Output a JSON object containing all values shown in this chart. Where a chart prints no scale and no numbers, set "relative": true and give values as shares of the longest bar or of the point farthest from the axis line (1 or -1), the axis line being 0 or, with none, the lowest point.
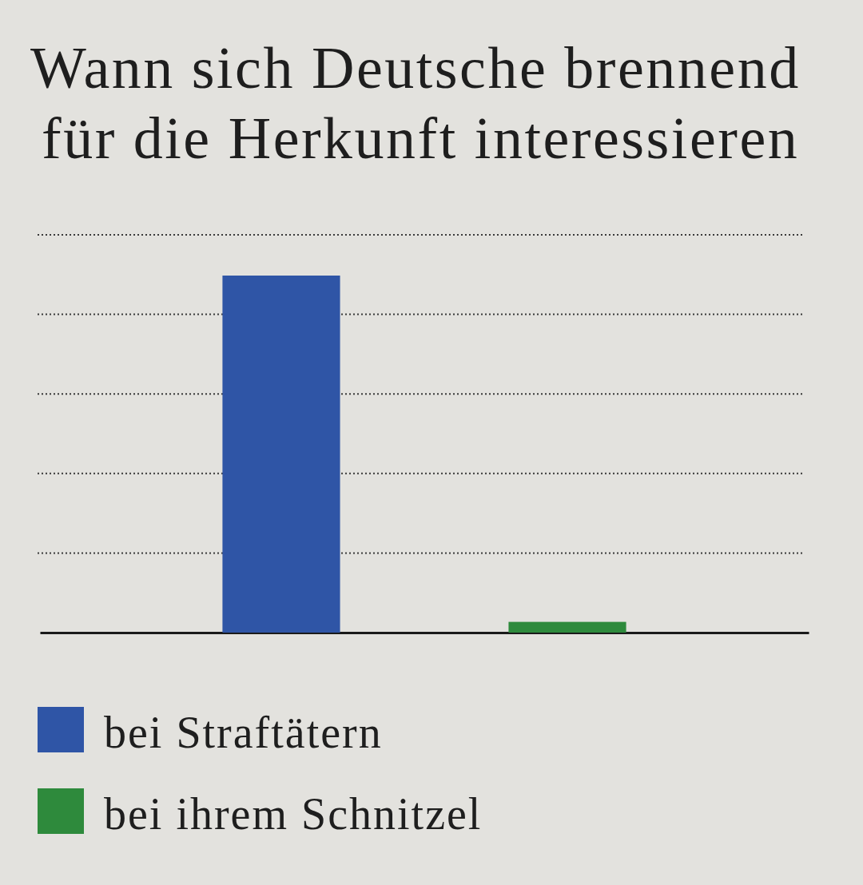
{
  "chart_data": {
    "type": "bar",
    "title": "Wann sich Deutsche brennend\nfür die Herkunft interessieren",
    "categories": [
      null,
      null
    ],
    "series": [
      {
        "name": "bei Straftätern",
        "color": "#2f55a6",
        "values": [
          1,
          null
        ]
      },
      {
        "name": "bei ihrem Schnitzel",
        "color": "#2e8a3c",
        "values": [
          null,
          0.03
        ]
      }
    ],
    "stacked": true,
    "relative": true,
    "grid": "y",
    "legend": "bottom left"
  }
}
